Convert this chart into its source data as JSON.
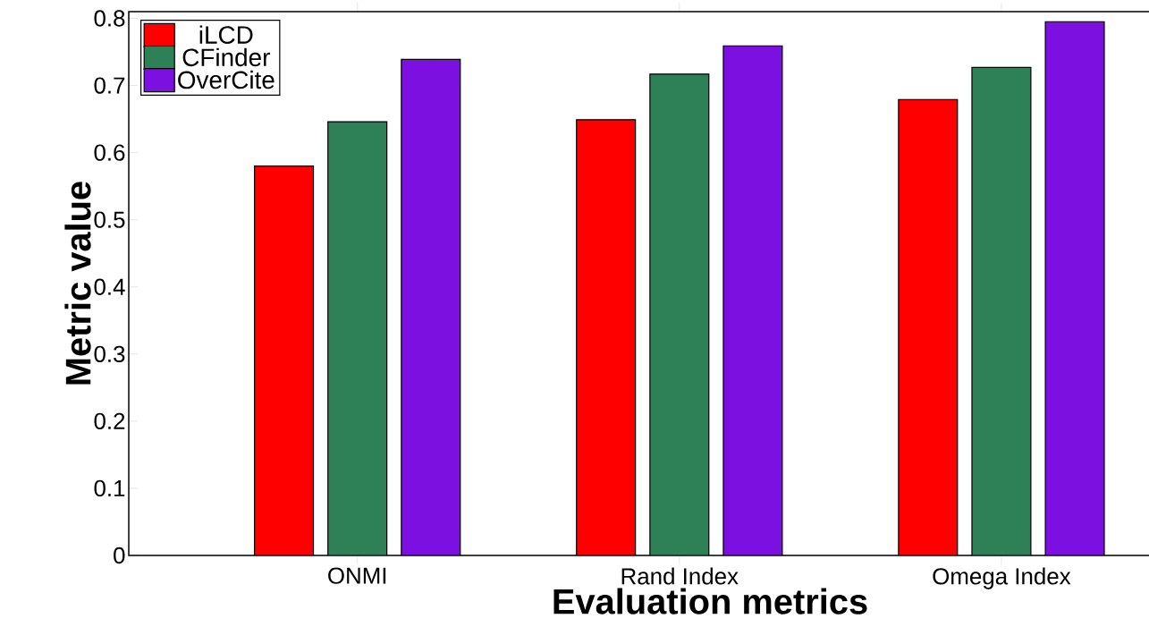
{
  "chart_data": {
    "type": "bar",
    "xlabel": "Evaluation metrics",
    "ylabel": "Metric value",
    "categories": [
      "ONMI",
      "Rand Index",
      "Omega Index"
    ],
    "series": [
      {
        "name": "iLCD",
        "color": "#ff0000",
        "values": [
          0.58,
          0.649,
          0.679
        ]
      },
      {
        "name": "CFinder",
        "color": "#2e8057",
        "values": [
          0.646,
          0.717,
          0.727
        ]
      },
      {
        "name": "OverCite",
        "color": "#7b10e0",
        "values": [
          0.739,
          0.759,
          0.795
        ]
      }
    ],
    "ylim": [
      0,
      0.81
    ],
    "yticks": [
      0,
      0.1,
      0.2,
      0.3,
      0.4,
      0.5,
      0.6,
      0.7,
      0.8
    ],
    "grid": false,
    "legend": "top left"
  }
}
